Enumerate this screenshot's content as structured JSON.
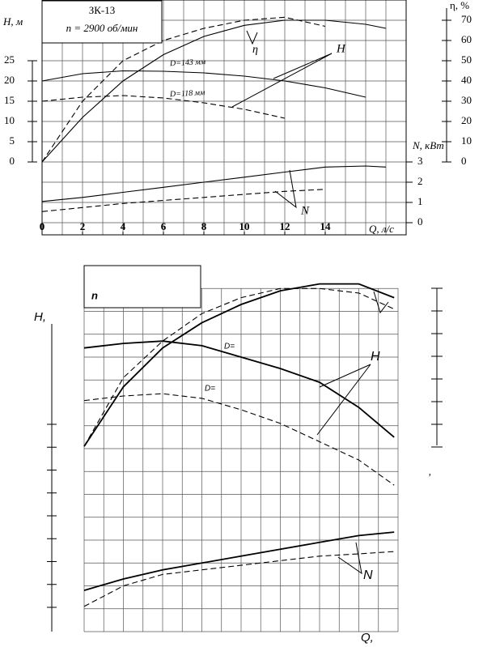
{
  "chart_data": [
    {
      "type": "line",
      "title": "ЗК-13",
      "subtitle": "n = 2900 об/мин",
      "x_label": "Q, л/с",
      "y_label": "H, м",
      "y2_label": "η, %",
      "y3_label": "N, кВт",
      "xlim": [
        0,
        18
      ],
      "xticks": [
        0,
        2,
        4,
        6,
        8,
        10,
        12,
        14
      ],
      "ylim": [
        -18,
        40
      ],
      "yticks": [
        0,
        5,
        10,
        15,
        20,
        25
      ],
      "y2lim": [
        -36,
        80
      ],
      "y2ticks": [
        0,
        10,
        20,
        30,
        40,
        50,
        60,
        70
      ],
      "y3lim": [
        -0.6,
        11
      ],
      "y3ticks": [
        0,
        1,
        2,
        3
      ],
      "grid": true,
      "x": [
        0,
        2,
        4,
        6,
        8,
        10,
        12,
        14,
        16,
        17
      ],
      "series": [
        {
          "color": "#000",
          "dashed": false,
          "axis": "y",
          "values": [
            20,
            21.8,
            22.5,
            22.4,
            22,
            21.2,
            20,
            18.3,
            16,
            null
          ]
        },
        {
          "color": "#000",
          "dashed": true,
          "axis": "y",
          "values": [
            15,
            16,
            16.4,
            15.8,
            14.6,
            13,
            10.8,
            null,
            null,
            null
          ]
        },
        {
          "color": "#000",
          "dashed": false,
          "axis": "y2",
          "values": [
            0,
            22,
            40,
            53,
            62,
            67.5,
            70,
            70,
            68,
            66
          ]
        },
        {
          "color": "#000",
          "dashed": true,
          "axis": "y2",
          "values": [
            0,
            30,
            50,
            60,
            66,
            70,
            71.5,
            67,
            null,
            null
          ]
        },
        {
          "color": "#000",
          "dashed": false,
          "axis": "y3",
          "values": [
            1.05,
            1.25,
            1.5,
            1.75,
            2.0,
            2.25,
            2.5,
            2.75,
            2.8,
            2.75
          ]
        },
        {
          "color": "#000",
          "dashed": true,
          "axis": "y3",
          "values": [
            0.55,
            0.75,
            0.95,
            1.1,
            1.25,
            1.4,
            1.55,
            1.65,
            null,
            null
          ]
        }
      ],
      "annotations": [
        "D=143 мм",
        "D=118 мм",
        "η",
        "H",
        "N"
      ]
    },
    {
      "type": "line",
      "title": "n",
      "x_label": "Q,",
      "y_label": "H,",
      "xlim": [
        0,
        16
      ],
      "ylim": [
        0,
        16
      ],
      "grid": true,
      "x": [
        0,
        2,
        4,
        6,
        8,
        10,
        12,
        14,
        15.8
      ],
      "series": [
        {
          "color": "#000",
          "dashed": false,
          "values": [
            12.4,
            12.6,
            12.7,
            12.5,
            12.0,
            11.5,
            10.9,
            9.8,
            8.5
          ]
        },
        {
          "color": "#000",
          "dashed": true,
          "values": [
            10.1,
            10.3,
            10.4,
            10.2,
            9.7,
            9.1,
            8.3,
            7.5,
            6.4
          ]
        },
        {
          "color": "#000",
          "dashed": false,
          "values": [
            8.1,
            10.7,
            12.4,
            13.5,
            14.3,
            14.9,
            15.2,
            15.2,
            14.6
          ]
        },
        {
          "color": "#000",
          "dashed": true,
          "values": [
            8.1,
            11.1,
            12.7,
            13.9,
            14.6,
            15.0,
            15.0,
            14.8,
            14.1
          ]
        },
        {
          "color": "#000",
          "dashed": false,
          "values": [
            1.8,
            2.3,
            2.7,
            3.0,
            3.3,
            3.6,
            3.9,
            4.2,
            4.35
          ]
        },
        {
          "color": "#000",
          "dashed": true,
          "values": [
            1.1,
            2.0,
            2.5,
            2.7,
            2.9,
            3.1,
            3.3,
            3.4,
            3.5
          ]
        }
      ],
      "annotations": [
        "D=",
        "D=",
        "H",
        "N",
        ","
      ]
    }
  ]
}
